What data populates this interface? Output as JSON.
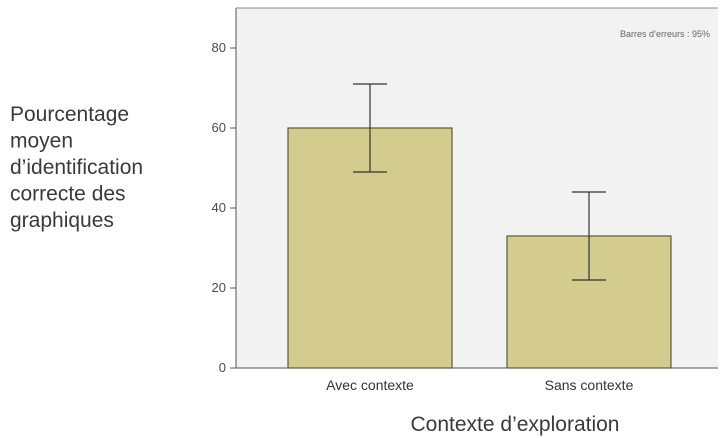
{
  "chart_data": {
    "type": "bar",
    "categories": [
      "Avec contexte",
      "Sans contexte"
    ],
    "values": [
      60,
      33
    ],
    "error_bars": [
      {
        "low": 49,
        "high": 71
      },
      {
        "low": 22,
        "high": 44
      }
    ],
    "ylim": [
      0,
      90
    ],
    "yticks": [
      0,
      20,
      40,
      60,
      80
    ],
    "ylabel_lines": [
      "Pourcentage",
      "moyen",
      "d’identification",
      "correcte des",
      "graphiques"
    ],
    "xlabel": "Contexte d’exploration",
    "annotation": "Barres d’erreurs : 95%",
    "grid": false,
    "legend": "none",
    "colors": {
      "plot_background": "#f2f2f2",
      "bar_fill": "#d4cb8e",
      "bar_stroke": "#5c5a3c",
      "axis": "#555555",
      "error_bar": "#333333"
    }
  }
}
